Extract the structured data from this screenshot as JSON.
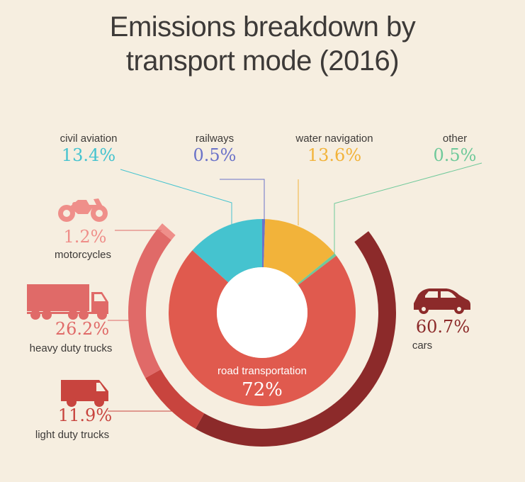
{
  "title_line1": "Emissions breakdown by",
  "title_line2": "transport mode (2016)",
  "chart_data": {
    "type": "pie",
    "title": "Emissions breakdown by transport mode (2016)",
    "inner_ring": [
      {
        "name": "road transportation",
        "value": 72,
        "label": "72%",
        "color": "#e05a4e"
      },
      {
        "name": "civil aviation",
        "value": 13.4,
        "label": "13.4%",
        "color": "#45c3cf"
      },
      {
        "name": "railways",
        "value": 0.5,
        "label": "0.5%",
        "color": "#6b73c8"
      },
      {
        "name": "water navigation",
        "value": 13.6,
        "label": "13.6%",
        "color": "#f2b33a"
      },
      {
        "name": "other",
        "value": 0.5,
        "label": "0.5%",
        "color": "#6fc99a"
      }
    ],
    "outer_ring": [
      {
        "name": "cars",
        "value": 60.7,
        "label": "60.7%",
        "color": "#8c2a2a"
      },
      {
        "name": "light duty trucks",
        "value": 11.9,
        "label": "11.9%",
        "color": "#c8443e"
      },
      {
        "name": "heavy duty trucks",
        "value": 26.2,
        "label": "26.2%",
        "color": "#e06a68"
      },
      {
        "name": "motorcycles",
        "value": 1.2,
        "label": "1.2%",
        "color": "#ef8f8a"
      }
    ]
  },
  "icons": {
    "motorcycle": "motorcycle-icon",
    "truck": "heavy-truck-icon",
    "van": "van-icon",
    "car": "car-icon"
  }
}
